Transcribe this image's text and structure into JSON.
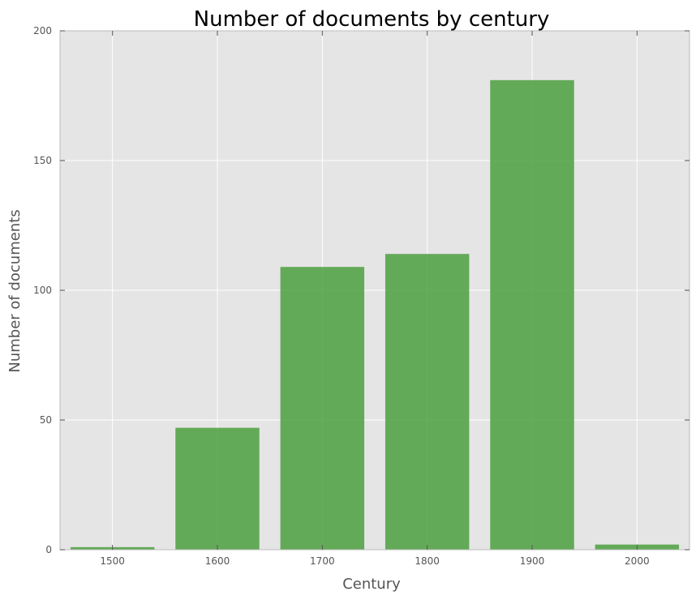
{
  "chart_data": {
    "type": "bar",
    "title": "Number of documents by century",
    "xlabel": "Century",
    "ylabel": "Number of documents",
    "categories": [
      "1500",
      "1600",
      "1700",
      "1800",
      "1900",
      "2000"
    ],
    "x": [
      1500,
      1600,
      1700,
      1800,
      1900,
      2000
    ],
    "values": [
      1,
      47,
      109,
      114,
      181,
      2
    ],
    "ylim": [
      0,
      200
    ],
    "xlim": [
      1450,
      2050
    ],
    "yticks": [
      0,
      50,
      100,
      150,
      200
    ],
    "grid": true,
    "bar_color": "#4ca040",
    "background_color": "#e5e5e5",
    "grid_color": "#ffffff"
  }
}
